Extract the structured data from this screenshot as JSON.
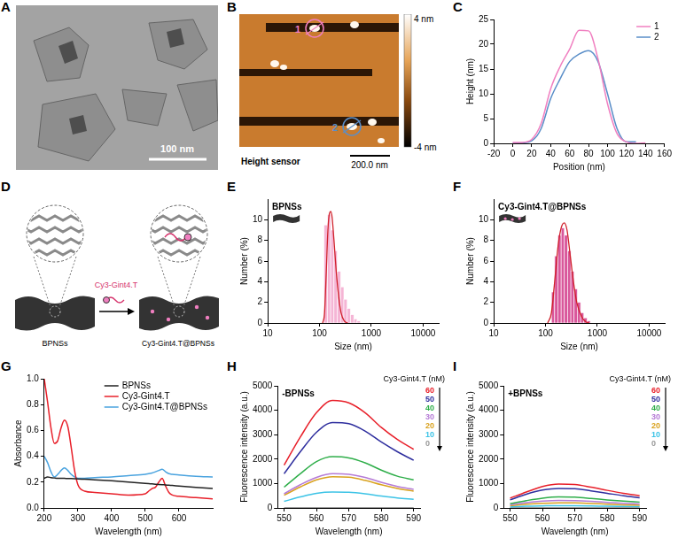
{
  "images": [
    {
      "panel": "A",
      "scale_bar": "100 nm"
    },
    {
      "panel": "B",
      "caption": "Height sensor",
      "scale_bar": "200.0 nm",
      "markers": [
        {
          "label": "1",
          "color": "#f07fc0"
        },
        {
          "label": "2",
          "color": "#5a8ec8"
        }
      ],
      "color_bar": {
        "range": [
          -4,
          4
        ],
        "ticks": [
          {
            "value": 4,
            "label": "4 nm"
          },
          {
            "value": -4,
            "label": "-4 nm"
          }
        ]
      }
    }
  ],
  "diagram": {
    "panel": "D",
    "arrow_label": "Cy3-Gint4.T",
    "nodes": [
      {
        "label": "BPNSs"
      },
      {
        "label": "Cy3-Gint4.T@BPNSs"
      }
    ]
  },
  "chart_data": [
    {
      "panel": "C",
      "type": "line",
      "x_label": "Position (nm)",
      "y_label": "Height (nm)",
      "xlim": [
        -20,
        160
      ],
      "xticks": [
        -20,
        0,
        20,
        40,
        60,
        80,
        100,
        120,
        140,
        160
      ],
      "ylim": [
        0,
        25
      ],
      "yticks": [
        0,
        5,
        10,
        15,
        20,
        25
      ],
      "grid": false,
      "legend": "upper right",
      "x": [
        0,
        10,
        20,
        30,
        40,
        50,
        60,
        70,
        80,
        90,
        100,
        110,
        120,
        130,
        140
      ],
      "series": [
        {
          "name": "1",
          "color": "#f07fc0",
          "values": [
            0.2,
            0.2,
            0.8,
            4,
            11,
            15.5,
            19,
            22.8,
            22.7,
            17,
            8,
            2,
            0.3,
            0,
            0.1
          ]
        },
        {
          "name": "2",
          "color": "#5a8ec8",
          "values": [
            0,
            0.1,
            0.5,
            3,
            9,
            13,
            16.5,
            18,
            18.7,
            16.5,
            10,
            3,
            0.3,
            0.3,
            null
          ]
        }
      ]
    },
    {
      "panel": "E",
      "type": "histogram",
      "annotation": "BPNSs",
      "x_label": "Size (nm)",
      "y_label": "Number (%)",
      "log": "x",
      "xlim": [
        10,
        20000
      ],
      "xticks": [
        10,
        100,
        1000,
        10000
      ],
      "ylim": [
        0,
        12
      ],
      "yticks": [
        0,
        2,
        4,
        6,
        8,
        10
      ],
      "grid": false,
      "color": "#f5b5d5",
      "bins": [
        122,
        142,
        164,
        190,
        220,
        255,
        295,
        342,
        396,
        459,
        531,
        615
      ],
      "counts": [
        9.5,
        10.5,
        9.0,
        7.0,
        5.0,
        3.5,
        2.3,
        1.4,
        0.8,
        0.4,
        0.2
      ],
      "fit": {
        "color": "#d0202a",
        "x": [
          115,
          125,
          135,
          145,
          155,
          165,
          175,
          190,
          210,
          235,
          260,
          300,
          350
        ],
        "values": [
          0,
          1,
          5,
          9,
          10.6,
          10.8,
          10.2,
          8,
          5,
          2.5,
          1,
          0.2,
          0
        ]
      }
    },
    {
      "panel": "F",
      "type": "histogram",
      "annotation": "Cy3-Gint4.T@BPNSs",
      "x_label": "Size (nm)",
      "y_label": "Number (%)",
      "log": "x",
      "xlim": [
        10,
        20000
      ],
      "xticks": [
        10,
        100,
        1000,
        10000
      ],
      "ylim": [
        0,
        12
      ],
      "yticks": [
        0,
        2,
        4,
        6,
        8,
        10
      ],
      "grid": false,
      "color": "#d9579b",
      "bins": [
        130,
        150,
        173,
        200,
        231,
        267,
        308,
        356,
        411,
        475,
        549,
        634,
        733
      ],
      "counts": [
        3,
        6.5,
        8.5,
        9.2,
        8.5,
        7.0,
        5.0,
        3.3,
        2.0,
        1.0,
        0.5,
        0.2
      ],
      "fit": {
        "color": "#d0202a",
        "x": [
          110,
          130,
          150,
          175,
          200,
          230,
          260,
          300,
          350,
          400,
          500,
          600,
          700
        ],
        "values": [
          0,
          1,
          4,
          7.5,
          9.2,
          9.7,
          9,
          6.5,
          3.8,
          2,
          0.6,
          0.1,
          0
        ]
      }
    },
    {
      "panel": "G",
      "type": "line",
      "x_label": "Wavelength (nm)",
      "y_label": "Absorbance",
      "xlim": [
        200,
        700
      ],
      "xticks": [
        200,
        300,
        400,
        500,
        600
      ],
      "ylim": [
        0,
        1
      ],
      "yticks": [
        {
          "value": 0,
          "label": "0.0"
        },
        0.2,
        0.4,
        0.6,
        0.8,
        {
          "value": 1,
          "label": "1.0"
        }
      ],
      "grid": false,
      "legend": "upper right",
      "x": [
        200,
        210,
        220,
        230,
        240,
        250,
        260,
        270,
        280,
        290,
        300,
        320,
        350,
        400,
        450,
        500,
        510,
        520,
        530,
        540,
        550,
        560,
        570,
        580,
        600,
        650,
        700
      ],
      "series": [
        {
          "name": "BPNSs",
          "color": "#222222",
          "values": [
            0.23,
            0.24,
            0.235,
            0.232,
            0.23,
            0.23,
            0.229,
            0.228,
            0.227,
            0.226,
            0.225,
            0.222,
            0.218,
            0.21,
            0.2,
            0.19,
            0.188,
            0.186,
            0.184,
            0.182,
            0.18,
            0.178,
            0.176,
            0.174,
            0.17,
            0.16,
            0.15
          ]
        },
        {
          "name": "Cy3-Gint4.T",
          "color": "#e8202a",
          "values": [
            1.0,
            0.82,
            0.62,
            0.5,
            0.52,
            0.62,
            0.68,
            0.63,
            0.47,
            0.29,
            0.18,
            0.13,
            0.12,
            0.11,
            0.1,
            0.11,
            0.13,
            0.15,
            0.16,
            0.2,
            0.23,
            0.17,
            0.12,
            0.1,
            0.09,
            0.08,
            0.07
          ]
        },
        {
          "name": "Cy3-Gint4.T@BPNSs",
          "color": "#4aa3df",
          "values": [
            0.4,
            0.35,
            0.28,
            0.24,
            0.26,
            0.29,
            0.31,
            0.29,
            0.26,
            0.24,
            0.23,
            0.23,
            0.235,
            0.24,
            0.25,
            0.26,
            0.265,
            0.27,
            0.28,
            0.29,
            0.3,
            0.28,
            0.265,
            0.26,
            0.255,
            0.245,
            0.24
          ]
        }
      ]
    },
    {
      "panel": "H",
      "type": "line",
      "annotation": "-BPNSs",
      "x_label": "Wavelength (nm)",
      "y_label": "Fluorescence intensity (a.u.)",
      "xlim": [
        548,
        592
      ],
      "xticks": [
        550,
        560,
        570,
        580,
        590
      ],
      "ylim": [
        0,
        5000
      ],
      "yticks": [
        0,
        1000,
        2000,
        3000,
        4000,
        5000
      ],
      "grid": false,
      "legend": "right",
      "legend_title": "Cy3-Gint4.T (nM)",
      "x": [
        550,
        555,
        560,
        565,
        570,
        575,
        580,
        585,
        590
      ],
      "series": [
        {
          "name": "60",
          "color": "#e8202a",
          "values": [
            1750,
            2900,
            3900,
            4400,
            4300,
            3900,
            3300,
            2800,
            2400
          ]
        },
        {
          "name": "50",
          "color": "#2e2e9e",
          "values": [
            1400,
            2300,
            3100,
            3500,
            3450,
            3150,
            2700,
            2300,
            1950
          ]
        },
        {
          "name": "40",
          "color": "#2fae4a",
          "values": [
            850,
            1400,
            1900,
            2100,
            2050,
            1850,
            1550,
            1300,
            1150
          ]
        },
        {
          "name": "30",
          "color": "#b57bd6",
          "values": [
            580,
            950,
            1250,
            1400,
            1380,
            1250,
            1050,
            880,
            760
          ]
        },
        {
          "name": "20",
          "color": "#d9a21f",
          "values": [
            520,
            860,
            1150,
            1280,
            1260,
            1130,
            950,
            800,
            690
          ]
        },
        {
          "name": "10",
          "color": "#3cc3e6",
          "values": [
            270,
            450,
            600,
            650,
            640,
            580,
            490,
            410,
            350
          ]
        },
        {
          "name": "0",
          "color": "#9a9a9a",
          "values": [
            10,
            10,
            10,
            10,
            10,
            10,
            10,
            10,
            10
          ]
        }
      ]
    },
    {
      "panel": "I",
      "type": "line",
      "annotation": "+BPNSs",
      "x_label": "Wavelength (nm)",
      "y_label": "Fluorescence intensity (a.u.)",
      "xlim": [
        548,
        592
      ],
      "xticks": [
        550,
        560,
        570,
        580,
        590
      ],
      "ylim": [
        0,
        5000
      ],
      "yticks": [
        0,
        1000,
        2000,
        3000,
        4000,
        5000
      ],
      "grid": false,
      "legend": "right",
      "legend_title": "Cy3-Gint4.T (nM)",
      "x": [
        550,
        555,
        560,
        565,
        570,
        575,
        580,
        585,
        590
      ],
      "series": [
        {
          "name": "60",
          "color": "#e8202a",
          "values": [
            400,
            650,
            880,
            980,
            960,
            850,
            720,
            600,
            500
          ]
        },
        {
          "name": "50",
          "color": "#2e2e9e",
          "values": [
            330,
            560,
            730,
            800,
            790,
            700,
            600,
            500,
            420
          ]
        },
        {
          "name": "40",
          "color": "#2fae4a",
          "values": [
            180,
            300,
            400,
            450,
            440,
            390,
            330,
            280,
            240
          ]
        },
        {
          "name": "30",
          "color": "#b57bd6",
          "values": [
            130,
            220,
            280,
            310,
            300,
            270,
            230,
            190,
            165
          ]
        },
        {
          "name": "20",
          "color": "#d9a21f",
          "values": [
            90,
            150,
            190,
            210,
            205,
            185,
            155,
            130,
            110
          ]
        },
        {
          "name": "10",
          "color": "#3cc3e6",
          "values": [
            40,
            70,
            85,
            95,
            92,
            82,
            70,
            60,
            50
          ]
        },
        {
          "name": "0",
          "color": "#9a9a9a",
          "values": [
            5,
            5,
            5,
            5,
            5,
            5,
            5,
            5,
            5
          ]
        }
      ]
    }
  ]
}
